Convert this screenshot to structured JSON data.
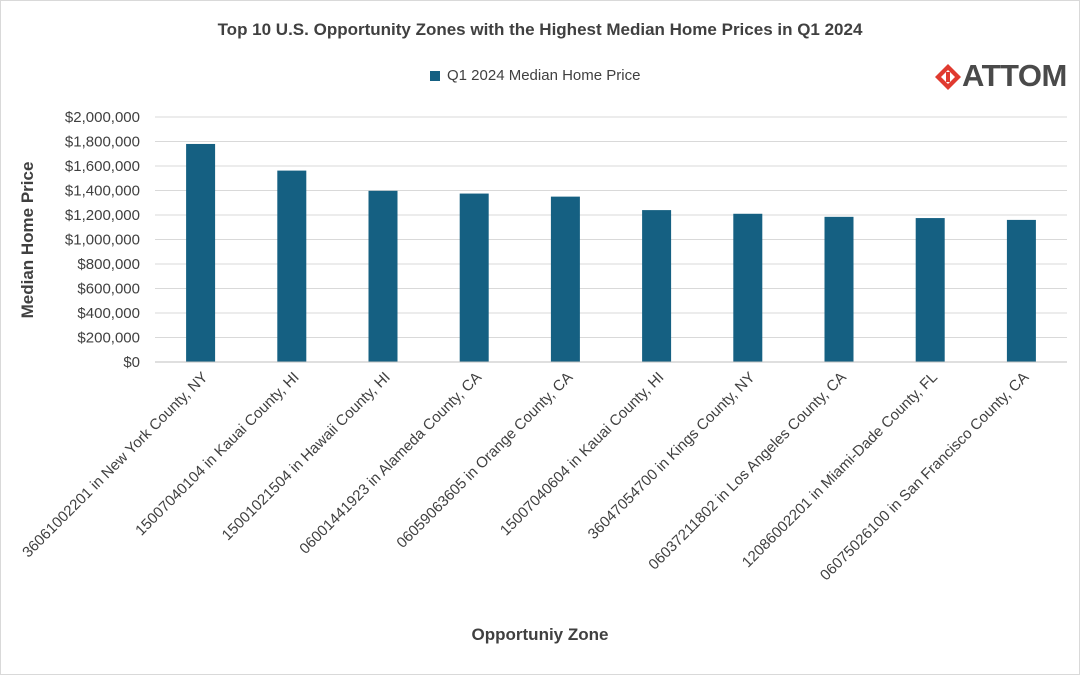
{
  "colors": {
    "bar": "#156082",
    "grid": "#d9d9d9",
    "text": "#404040",
    "logo_red": "#e03a2f"
  },
  "logo": {
    "text": "ATTOM",
    "icon": "attom-logo-mark"
  },
  "chart_data": {
    "type": "bar",
    "title": "Top 10 U.S. Opportunity Zones with the Highest Median Home Prices in Q1 2024",
    "xlabel": "Opportuniy Zone",
    "ylabel": "Median Home Price",
    "ylim": [
      0,
      2000000
    ],
    "grid": true,
    "legend": "top-center",
    "categories": [
      "36061002201 in New York County, NY",
      "15007040104 in Kauai County, HI",
      "15001021504 in Hawaii County, HI",
      "06001441923 in Alameda County, CA",
      "06059063605 in Orange County, CA",
      "15007040604 in Kauai County, HI",
      "36047054700 in Kings County, NY",
      "06037211802 in Los Angeles County, CA",
      "12086002201 in Miami-Dade County, FL",
      "06075026100 in San Francisco County, CA"
    ],
    "yticks": [
      "$0",
      "$200,000",
      "$400,000",
      "$600,000",
      "$800,000",
      "$1,000,000",
      "$1,200,000",
      "$1,400,000",
      "$1,600,000",
      "$1,800,000",
      "$2,000,000"
    ],
    "series": [
      {
        "name": "Q1 2024 Median Home Price",
        "values": [
          1780000,
          1562500,
          1397500,
          1375000,
          1350000,
          1240000,
          1210000,
          1185000,
          1175000,
          1160000
        ]
      }
    ]
  }
}
